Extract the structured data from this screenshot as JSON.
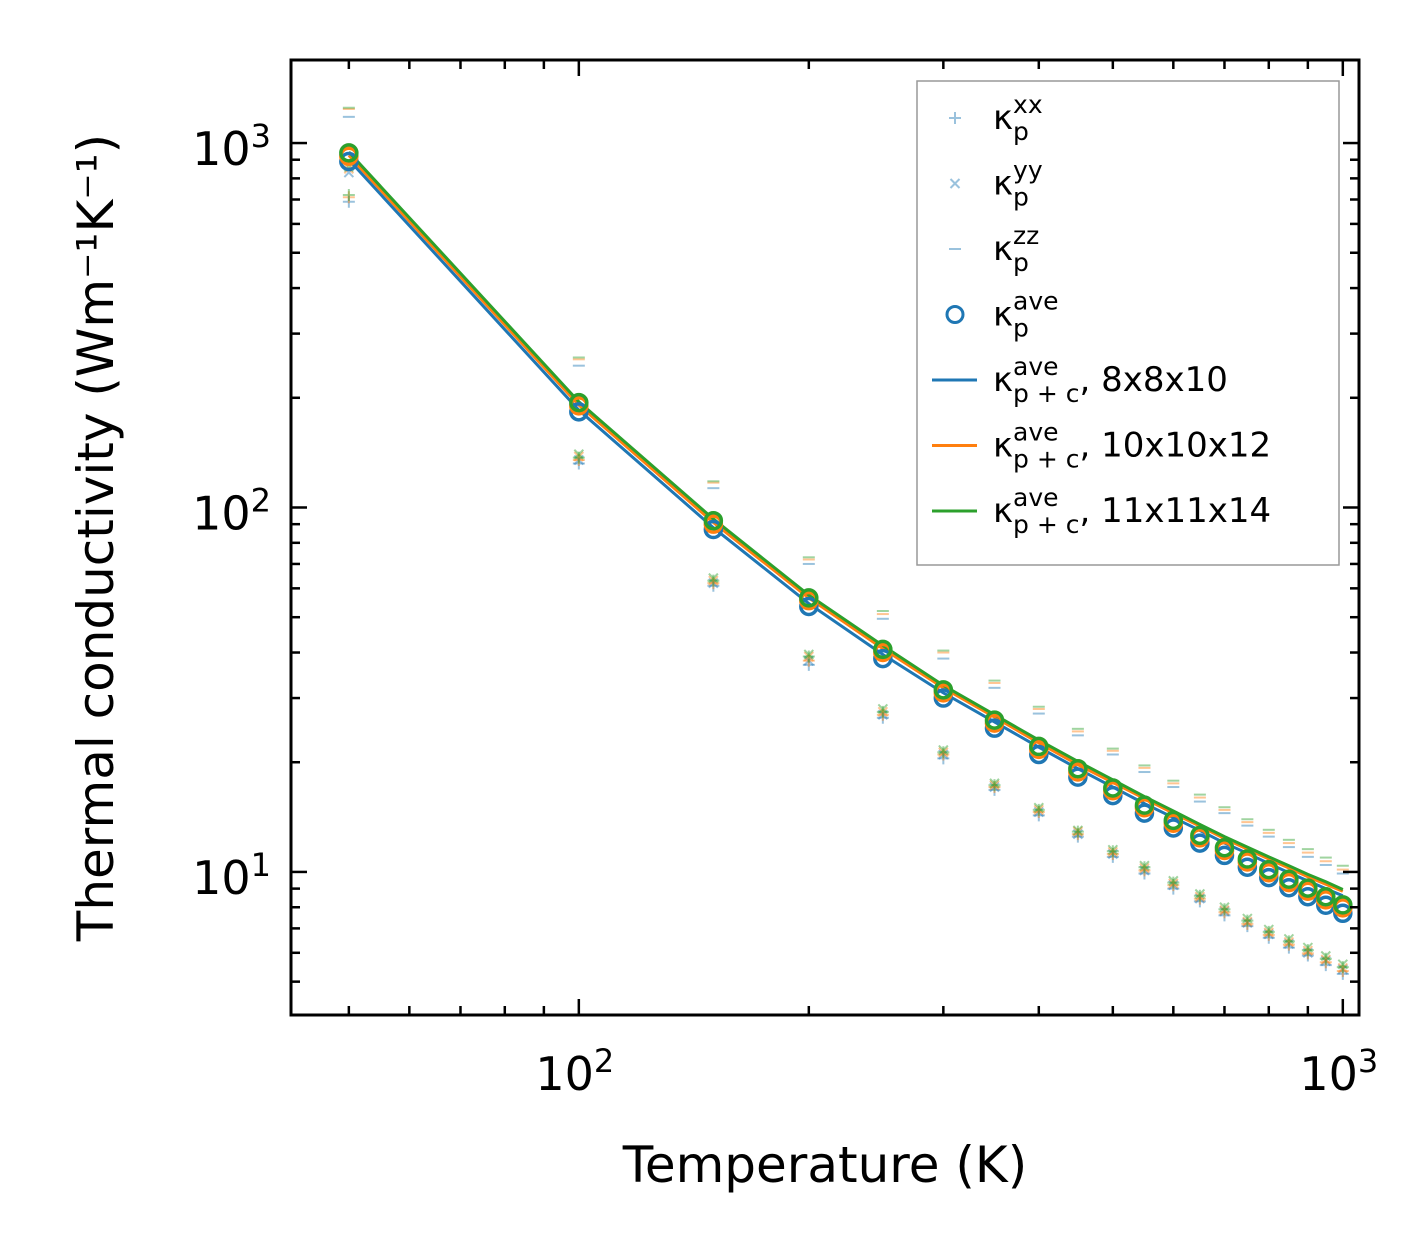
{
  "chart_data": {
    "type": "scatter",
    "xscale": "log",
    "yscale": "log",
    "xlabel": "Temperature (K)",
    "ylabel": "Thermal conductivity (Wm⁻¹K⁻¹)",
    "xlim": [
      42,
      1050
    ],
    "ylim": [
      4.05,
      1690
    ],
    "x_ticks": [
      {
        "value": 100,
        "base": "10",
        "exp": "2"
      },
      {
        "value": 1000,
        "base": "10",
        "exp": "3"
      }
    ],
    "y_ticks": [
      {
        "value": 10,
        "base": "10",
        "exp": "1"
      },
      {
        "value": 100,
        "base": "10",
        "exp": "2"
      },
      {
        "value": 1000,
        "base": "10",
        "exp": "3"
      }
    ],
    "temperatures": [
      50,
      100,
      150,
      200,
      250,
      300,
      350,
      400,
      450,
      500,
      550,
      600,
      650,
      700,
      750,
      800,
      850,
      900,
      950,
      1000
    ],
    "series": [
      {
        "name": "8x8x10",
        "color": "#1f77b4",
        "kxx": [
          690,
          132,
          61,
          37,
          26.5,
          20.5,
          16.8,
          14.3,
          12.5,
          11.0,
          9.9,
          9.0,
          8.3,
          7.6,
          7.1,
          6.6,
          6.2,
          5.9,
          5.55,
          5.25
        ],
        "kyy": [
          830,
          135,
          62,
          38,
          27,
          21,
          17.1,
          14.6,
          12.7,
          11.2,
          10.1,
          9.2,
          8.45,
          7.8,
          7.25,
          6.75,
          6.35,
          6.0,
          5.7,
          5.4
        ],
        "kzz": [
          1180,
          245,
          113,
          70,
          49.5,
          38.5,
          32,
          27.2,
          23.7,
          21.0,
          18.8,
          17.1,
          15.6,
          14.5,
          13.4,
          12.5,
          11.7,
          11.0,
          10.45,
          9.9
        ],
        "kave": [
          890,
          183,
          87,
          53.5,
          38.5,
          30.0,
          24.8,
          21.0,
          18.2,
          16.2,
          14.5,
          13.2,
          12.0,
          11.1,
          10.3,
          9.65,
          9.05,
          8.55,
          8.1,
          7.7
        ],
        "kpc": [
          900,
          185,
          88,
          54.5,
          39.5,
          31.0,
          25.8,
          22.0,
          19.2,
          17.1,
          15.4,
          14.1,
          13.0,
          12.0,
          11.25,
          10.55,
          9.95,
          9.45,
          9.0,
          8.6
        ]
      },
      {
        "name": "10x10x12",
        "color": "#ff7f0e",
        "kxx": [
          710,
          135,
          62,
          38,
          27,
          21,
          17.1,
          14.6,
          12.7,
          11.2,
          10.1,
          9.2,
          8.45,
          7.75,
          7.2,
          6.72,
          6.32,
          5.98,
          5.65,
          5.35
        ],
        "kyy": [
          850,
          138,
          63,
          39,
          27.5,
          21.3,
          17.3,
          14.8,
          12.9,
          11.35,
          10.25,
          9.3,
          8.55,
          7.85,
          7.3,
          6.82,
          6.42,
          6.08,
          5.75,
          5.45
        ],
        "kzz": [
          1240,
          255,
          117,
          72,
          51,
          40,
          33,
          28,
          24.3,
          21.5,
          19.3,
          17.5,
          16.0,
          14.8,
          13.7,
          12.8,
          12.0,
          11.3,
          10.7,
          10.15
        ],
        "kave": [
          920,
          190,
          90,
          55.5,
          40,
          31.0,
          25.6,
          21.7,
          18.8,
          16.7,
          15.0,
          13.6,
          12.4,
          11.45,
          10.65,
          9.95,
          9.35,
          8.85,
          8.38,
          7.97
        ],
        "kpc": [
          925,
          191,
          91,
          56.5,
          41,
          32.0,
          26.6,
          22.6,
          19.7,
          17.6,
          15.9,
          14.5,
          13.35,
          12.35,
          11.55,
          10.85,
          10.25,
          9.7,
          9.25,
          8.85
        ]
      },
      {
        "name": "11x11x14",
        "color": "#2ca02c",
        "kxx": [
          720,
          137,
          63,
          39,
          27.5,
          21.3,
          17.3,
          14.8,
          12.9,
          11.4,
          10.3,
          9.35,
          8.6,
          7.9,
          7.35,
          6.85,
          6.45,
          6.1,
          5.78,
          5.48
        ],
        "kyy": [
          860,
          140,
          64,
          39.5,
          28,
          21.6,
          17.5,
          15.0,
          13.0,
          11.5,
          10.4,
          9.45,
          8.7,
          8.0,
          7.45,
          6.95,
          6.55,
          6.2,
          5.88,
          5.58
        ],
        "kzz": [
          1250,
          258,
          118,
          73,
          52,
          40.5,
          33.5,
          28.4,
          24.7,
          21.8,
          19.6,
          17.8,
          16.3,
          15.05,
          13.95,
          13.05,
          12.25,
          11.55,
          10.95,
          10.4
        ],
        "kave": [
          940,
          194,
          92,
          56.5,
          40.8,
          31.6,
          26.1,
          22.1,
          19.2,
          17.0,
          15.25,
          13.85,
          12.6,
          11.65,
          10.85,
          10.15,
          9.55,
          9.03,
          8.55,
          8.12
        ],
        "kpc": [
          945,
          195,
          93,
          57.5,
          41.8,
          32.5,
          27.0,
          23.0,
          20.1,
          17.9,
          16.1,
          14.7,
          13.5,
          12.5,
          11.7,
          11.0,
          10.4,
          9.85,
          9.4,
          8.95
        ]
      }
    ],
    "legend": {
      "position": "top-right",
      "entries": [
        {
          "marker": "plus",
          "symbol": "κ",
          "sub": "p",
          "sup": "xx",
          "suffix": ""
        },
        {
          "marker": "cross",
          "symbol": "κ",
          "sub": "p",
          "sup": "yy",
          "suffix": ""
        },
        {
          "marker": "dash",
          "symbol": "κ",
          "sub": "p",
          "sup": "zz",
          "suffix": ""
        },
        {
          "marker": "circle",
          "symbol": "κ",
          "sub": "p",
          "sup": "ave",
          "suffix": ""
        },
        {
          "marker": "line",
          "series": 0,
          "symbol": "κ",
          "sub": "p + c",
          "sup": "ave",
          "suffix": ", 8x8x10"
        },
        {
          "marker": "line",
          "series": 1,
          "symbol": "κ",
          "sub": "p + c",
          "sup": "ave",
          "suffix": ", 10x10x12"
        },
        {
          "marker": "line",
          "series": 2,
          "symbol": "κ",
          "sub": "p + c",
          "sup": "ave",
          "suffix": ", 11x11x14"
        }
      ]
    }
  }
}
